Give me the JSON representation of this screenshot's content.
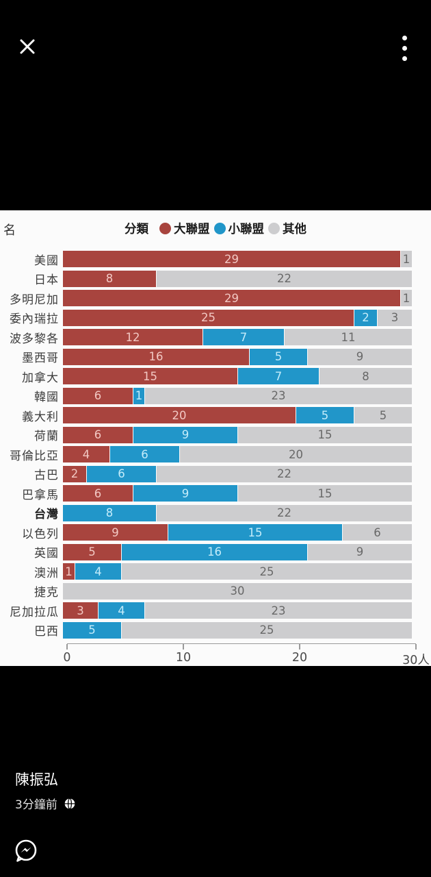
{
  "topbar": {
    "close_icon": "close-x",
    "menu_icon": "vertical-ellipsis"
  },
  "panel": {
    "corner_label": "名",
    "legend_title": "分類"
  },
  "chart_data": {
    "type": "bar",
    "orientation": "horizontal",
    "stacked": true,
    "title": "",
    "xlabel": "人",
    "ylabel": "名",
    "xlim": [
      0,
      30
    ],
    "x_tick_values": [
      0,
      10,
      20,
      30
    ],
    "x_tick_labels": [
      "0",
      "10",
      "20",
      "30人"
    ],
    "legend_position": "top",
    "highlight_category": "台灣",
    "categories": [
      "美國",
      "日本",
      "多明尼加",
      "委內瑞拉",
      "波多黎各",
      "墨西哥",
      "加拿大",
      "韓國",
      "義大利",
      "荷蘭",
      "哥倫比亞",
      "古巴",
      "巴拿馬",
      "台灣",
      "以色列",
      "英國",
      "澳洲",
      "捷克",
      "尼加拉瓜",
      "巴西"
    ],
    "series": [
      {
        "name": "大聯盟",
        "color": "#A8443E",
        "value_color": "#F2C8C3",
        "values": [
          29,
          8,
          29,
          25,
          12,
          16,
          15,
          6,
          20,
          6,
          4,
          2,
          6,
          0,
          9,
          5,
          1,
          0,
          3,
          0
        ]
      },
      {
        "name": "小聯盟",
        "color": "#2196C9",
        "value_color": "#C4ECFA",
        "values": [
          0,
          0,
          0,
          2,
          7,
          5,
          7,
          1,
          5,
          9,
          6,
          6,
          9,
          8,
          15,
          16,
          4,
          0,
          4,
          5
        ]
      },
      {
        "name": "其他",
        "color": "#CDCDCF",
        "value_color": "#686868",
        "values": [
          1,
          22,
          1,
          3,
          11,
          9,
          8,
          23,
          5,
          15,
          20,
          22,
          15,
          22,
          6,
          9,
          25,
          30,
          23,
          25
        ]
      }
    ]
  },
  "footer": {
    "author": "陳振弘",
    "timestamp": "3分鐘前",
    "privacy_icon": "globe-public"
  },
  "messenger_icon": "messenger-bubble-bolt"
}
